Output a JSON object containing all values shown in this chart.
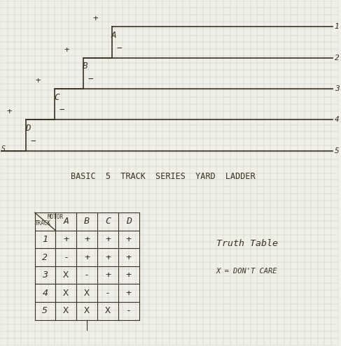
{
  "background_color": "#f0f0e8",
  "grid_color": "#c8c8c8",
  "line_color": "#3a3020",
  "title": "BASIC  5  TRACK  SERIES  YARD  LADDER",
  "title_fontsize": 9,
  "track_labels": [
    "1",
    "2",
    "3",
    "4",
    "5"
  ],
  "motor_labels": [
    "A",
    "B",
    "C",
    "D"
  ],
  "truth_table": [
    [
      "+",
      "+",
      "+",
      "+"
    ],
    [
      "-",
      "+",
      "+",
      "+"
    ],
    [
      "X",
      "-",
      "+",
      "+"
    ],
    [
      "X",
      "X",
      "-",
      "+"
    ],
    [
      "X",
      "X",
      "X",
      "-"
    ]
  ],
  "truth_table_label": "Truth Table",
  "dont_care_label": "X = DON'T CARE",
  "switch_labels": [
    "A",
    "B",
    "C",
    "D"
  ]
}
